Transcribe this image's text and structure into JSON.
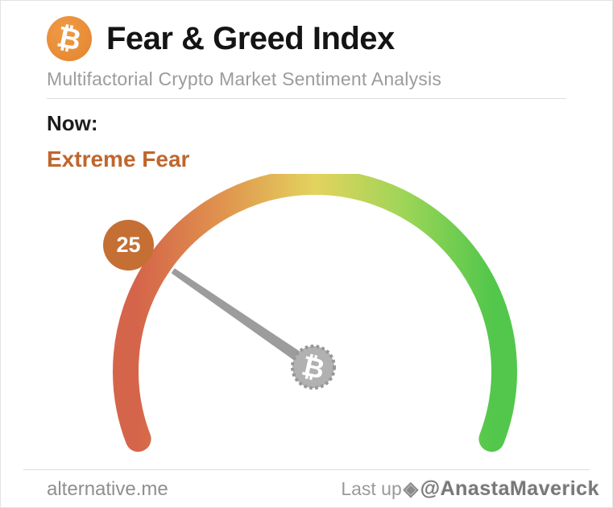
{
  "header": {
    "logo_symbol": "₿",
    "title": "Fear & Greed Index",
    "subtitle": "Multifactorial Crypto Market Sentiment Analysis"
  },
  "status": {
    "label": "Now:",
    "value": "Extreme Fear"
  },
  "gauge": {
    "hub_symbol": "₿"
  },
  "footer": {
    "source": "alternative.me",
    "last_updated_text": "Last up",
    "watermark_icon": "◈",
    "watermark": "@AnastaMaverick"
  },
  "chart_data": {
    "type": "gauge",
    "title": "Fear & Greed Index",
    "subtitle": "Multifactorial Crypto Market Sentiment Analysis",
    "value": 25,
    "min": 0,
    "max": 100,
    "classification": "Extreme Fear",
    "classification_color": "#c0662d",
    "badge_color": "#c56f35",
    "scale_colors": [
      "#d5654a",
      "#e0964e",
      "#e3d35e",
      "#9ed557",
      "#52c74c"
    ],
    "needle_color": "#9c9c9c",
    "arc_sweep_degrees": 222,
    "scale_direction": "0 (Extreme Fear) at left, 100 (Extreme Greed) at right"
  }
}
